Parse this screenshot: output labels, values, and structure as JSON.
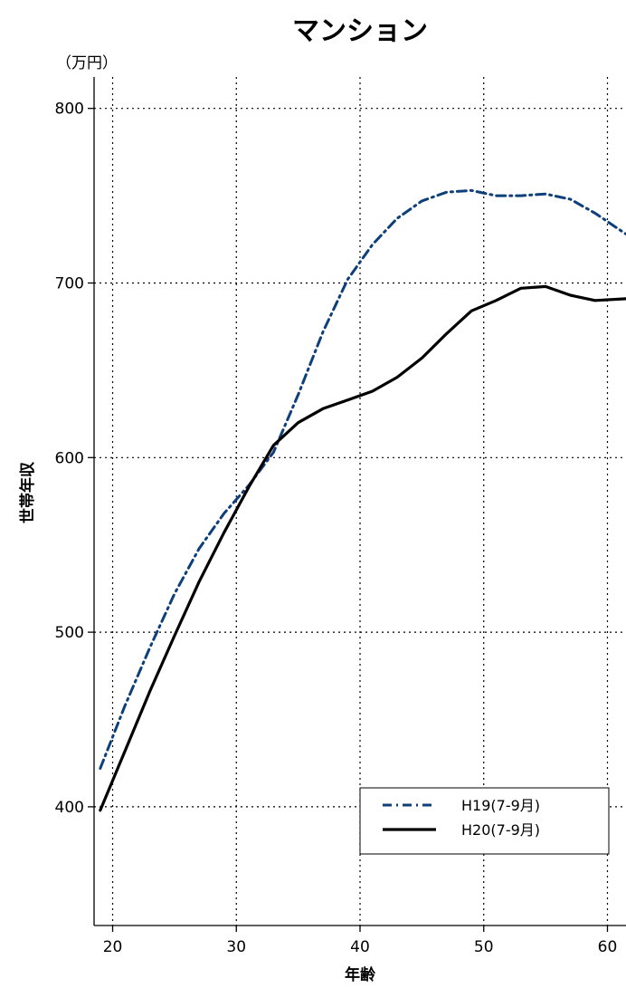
{
  "chart_data": {
    "type": "line",
    "title": "マンション",
    "xlabel": "年齢",
    "ylabel": "世帯年収",
    "yunit": "（万円）",
    "xlim": [
      18.5,
      61.5
    ],
    "ylim": [
      332,
      818
    ],
    "xticks": [
      20,
      30,
      40,
      50,
      60
    ],
    "yticks": [
      400,
      500,
      600,
      700,
      800
    ],
    "grid": true,
    "legend_position": "bottom-right",
    "series": [
      {
        "name": "H19(7-9月)",
        "color": "#0d3f7a",
        "style": "dashdot",
        "x": [
          19,
          21,
          23,
          25,
          27,
          29,
          31,
          33,
          35,
          37,
          39,
          41,
          43,
          45,
          47,
          49,
          51,
          53,
          55,
          57,
          59,
          61.5
        ],
        "y": [
          422,
          458,
          491,
          522,
          548,
          568,
          584,
          603,
          636,
          672,
          702,
          722,
          737,
          747,
          752,
          753,
          750,
          750,
          751,
          748,
          740,
          728
        ]
      },
      {
        "name": "H20(7-9月)",
        "color": "#000000",
        "style": "solid",
        "x": [
          19,
          21,
          23,
          25,
          27,
          29,
          31,
          33,
          35,
          37,
          39,
          41,
          43,
          45,
          47,
          49,
          51,
          53,
          55,
          57,
          59,
          61.5
        ],
        "y": [
          398,
          432,
          466,
          498,
          529,
          557,
          583,
          607,
          620,
          628,
          633,
          638,
          646,
          657,
          671,
          684,
          690,
          697,
          698,
          693,
          690,
          691
        ]
      }
    ]
  }
}
